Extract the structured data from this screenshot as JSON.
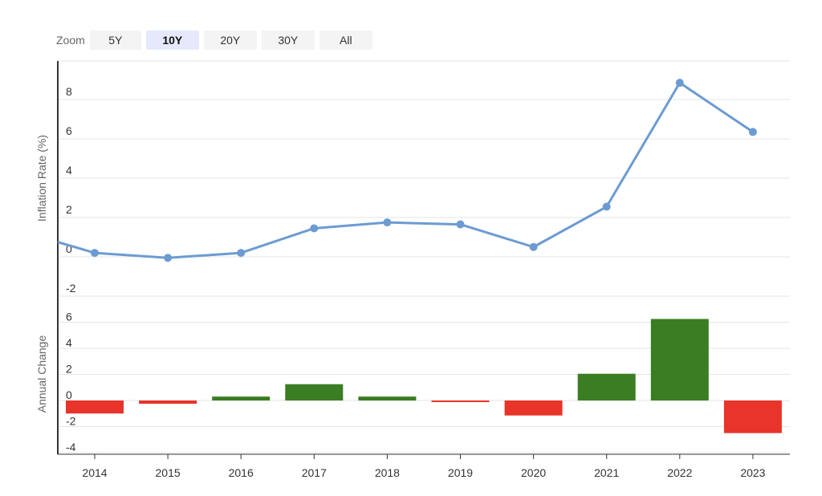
{
  "zoom": {
    "label": "Zoom",
    "buttons": [
      "5Y",
      "10Y",
      "20Y",
      "30Y",
      "All"
    ],
    "active_index": 1
  },
  "colors": {
    "line": "#6c9bd2",
    "positive": "#3a7d22",
    "negative": "#e8342a",
    "grid": "#e6e6e6",
    "axis": "#333333"
  },
  "chart_data": [
    {
      "type": "line",
      "ylabel": "Inflation Rate (%)",
      "ylim": [
        -2,
        9
      ],
      "yticks": [
        -2,
        0,
        2,
        4,
        6,
        8
      ],
      "x": [
        2014,
        2015,
        2016,
        2017,
        2018,
        2019,
        2020,
        2021,
        2022,
        2023
      ],
      "series": [
        {
          "values": [
            0.2,
            -0.05,
            0.2,
            1.45,
            1.75,
            1.65,
            0.5,
            2.55,
            8.85,
            6.35
          ]
        }
      ],
      "grid": true
    },
    {
      "type": "bar",
      "ylabel": "Annual Change",
      "ylim": [
        -4,
        7
      ],
      "yticks": [
        -4,
        -2,
        0,
        2,
        4,
        6
      ],
      "categories": [
        2014,
        2015,
        2016,
        2017,
        2018,
        2019,
        2020,
        2021,
        2022,
        2023
      ],
      "values": [
        -1.0,
        -0.25,
        0.3,
        1.25,
        0.3,
        -0.1,
        -1.15,
        2.05,
        6.25,
        -2.5
      ],
      "grid": true
    }
  ],
  "xticks": [
    "2014",
    "2015",
    "2016",
    "2017",
    "2018",
    "2019",
    "2020",
    "2021",
    "2022",
    "2023"
  ]
}
